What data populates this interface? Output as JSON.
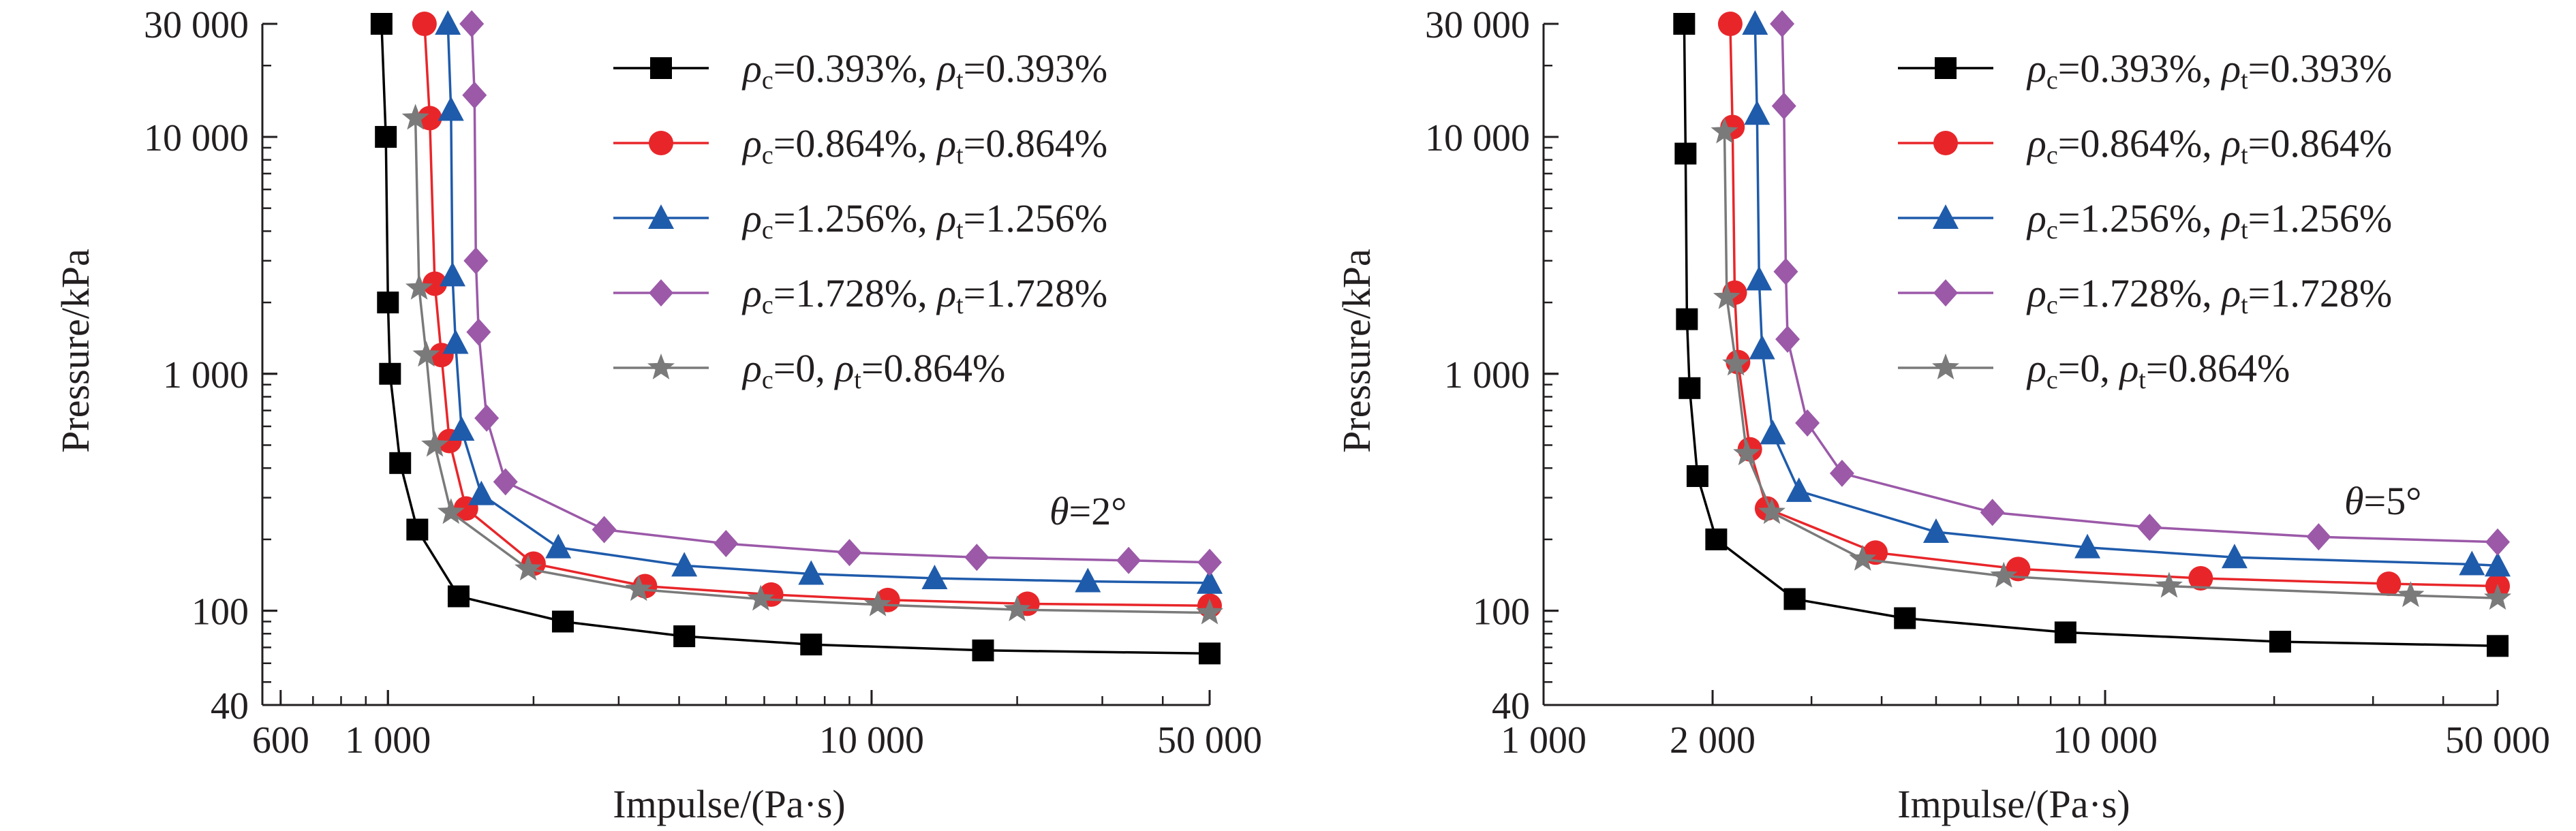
{
  "chart_data": [
    {
      "type": "line",
      "xlabel": "Impulse/(Pa·s)",
      "ylabel": "Pressure/kPa",
      "xscale": "log",
      "yscale": "log",
      "xlim": [
        550,
        50000
      ],
      "ylim": [
        40,
        30000
      ],
      "x_ticks": [
        {
          "v": 600,
          "label": "600"
        },
        {
          "v": 1000,
          "label": "1 000"
        },
        {
          "v": 10000,
          "label": "10 000"
        },
        {
          "v": 50000,
          "label": "50 000"
        }
      ],
      "y_ticks": [
        {
          "v": 40,
          "label": "40"
        },
        {
          "v": 100,
          "label": "100"
        },
        {
          "v": 1000,
          "label": "1 000"
        },
        {
          "v": 10000,
          "label": "10 000"
        },
        {
          "v": 30000,
          "label": "30 000"
        }
      ],
      "annotation": {
        "prefix": "θ",
        "value": "=2°"
      },
      "legend_position": "top-right",
      "series": [
        {
          "label": {
            "rc": "0.393%",
            "rt": "0.393%"
          },
          "color": "#000000",
          "marker": "square",
          "x": [
            970,
            990,
            1000,
            1010,
            1060,
            1150,
            1400,
            2300,
            4100,
            7500,
            17000,
            50000
          ],
          "y": [
            30000,
            10000,
            2000,
            1000,
            420,
            220,
            115,
            90,
            78,
            72,
            68,
            66
          ]
        },
        {
          "label": {
            "rc": "0.864%",
            "rt": "0.864%"
          },
          "color": "#e8262a",
          "marker": "circle",
          "x": [
            1190,
            1220,
            1250,
            1290,
            1340,
            1450,
            2000,
            3400,
            6200,
            10800,
            21000,
            50000
          ],
          "y": [
            30000,
            12000,
            2400,
            1200,
            520,
            270,
            158,
            127,
            117,
            111,
            107,
            105
          ]
        },
        {
          "label": {
            "rc": "1.256%",
            "rt": "1.256%"
          },
          "color": "#1f5bab",
          "marker": "triangle",
          "x": [
            1330,
            1350,
            1360,
            1380,
            1420,
            1560,
            2250,
            4100,
            7500,
            13500,
            28000,
            50000
          ],
          "y": [
            30000,
            13000,
            2600,
            1350,
            580,
            310,
            185,
            155,
            143,
            137,
            133,
            131
          ]
        },
        {
          "label": {
            "rc": "1.728%",
            "rt": "1.728%"
          },
          "color": "#9b59a8",
          "marker": "diamond",
          "x": [
            1490,
            1510,
            1520,
            1540,
            1600,
            1750,
            2800,
            5000,
            9000,
            16500,
            34000,
            50000
          ],
          "y": [
            30000,
            15000,
            3000,
            1500,
            650,
            350,
            220,
            192,
            176,
            168,
            163,
            160
          ]
        },
        {
          "label": {
            "rc": "0",
            "rt": "0.864%"
          },
          "color": "#7a7a7a",
          "marker": "star",
          "x": [
            1140,
            1160,
            1200,
            1250,
            1350,
            1950,
            3300,
            5900,
            10300,
            20000,
            50000
          ],
          "y": [
            12000,
            2300,
            1200,
            500,
            260,
            150,
            123,
            112,
            106,
            101,
            98
          ]
        }
      ]
    },
    {
      "type": "line",
      "xlabel": "Impulse/(Pa·s)",
      "ylabel": "Pressure/kPa",
      "xscale": "log",
      "yscale": "log",
      "xlim": [
        1000,
        50000
      ],
      "ylim": [
        40,
        30000
      ],
      "x_ticks": [
        {
          "v": 1000,
          "label": "1 000"
        },
        {
          "v": 2000,
          "label": "2 000"
        },
        {
          "v": 10000,
          "label": "10 000"
        },
        {
          "v": 50000,
          "label": "50 000"
        }
      ],
      "y_ticks": [
        {
          "v": 40,
          "label": "40"
        },
        {
          "v": 100,
          "label": "100"
        },
        {
          "v": 1000,
          "label": "1 000"
        },
        {
          "v": 10000,
          "label": "10 000"
        },
        {
          "v": 30000,
          "label": "30 000"
        }
      ],
      "annotation": {
        "prefix": "θ",
        "value": "=5°"
      },
      "legend_position": "top-right",
      "series": [
        {
          "label": {
            "rc": "0.393%",
            "rt": "0.393%"
          },
          "color": "#000000",
          "marker": "square",
          "x": [
            1780,
            1790,
            1800,
            1820,
            1880,
            2030,
            2800,
            4400,
            8500,
            20500,
            50000
          ],
          "y": [
            30000,
            8500,
            1700,
            870,
            370,
            200,
            112,
            93,
            81,
            74,
            71
          ]
        },
        {
          "label": {
            "rc": "0.864%",
            "rt": "0.864%"
          },
          "color": "#e8262a",
          "marker": "circle",
          "x": [
            2150,
            2170,
            2190,
            2220,
            2330,
            2500,
            3900,
            7000,
            14800,
            32000,
            50000
          ],
          "y": [
            30000,
            11000,
            2200,
            1120,
            480,
            270,
            176,
            150,
            137,
            130,
            127
          ]
        },
        {
          "label": {
            "rc": "1.256%",
            "rt": "1.256%"
          },
          "color": "#1f5bab",
          "marker": "triangle",
          "x": [
            2380,
            2400,
            2420,
            2450,
            2560,
            2850,
            5000,
            9300,
            17000,
            45000,
            50000
          ],
          "y": [
            30000,
            12500,
            2500,
            1280,
            560,
            320,
            215,
            185,
            168,
            157,
            155
          ]
        },
        {
          "label": {
            "rc": "1.728%",
            "rt": "1.728%"
          },
          "color": "#9b59a8",
          "marker": "diamond",
          "x": [
            2660,
            2680,
            2700,
            2720,
            2950,
            3400,
            6300,
            12000,
            24000,
            50000
          ],
          "y": [
            30000,
            13500,
            2700,
            1400,
            620,
            380,
            260,
            225,
            205,
            195
          ]
        },
        {
          "label": {
            "rc": "0",
            "rt": "0.864%"
          },
          "color": "#7a7a7a",
          "marker": "star",
          "x": [
            2100,
            2120,
            2200,
            2300,
            2550,
            3700,
            6600,
            13000,
            35000,
            50000
          ],
          "y": [
            10500,
            2100,
            1100,
            460,
            260,
            165,
            140,
            127,
            116,
            113
          ]
        }
      ]
    }
  ]
}
